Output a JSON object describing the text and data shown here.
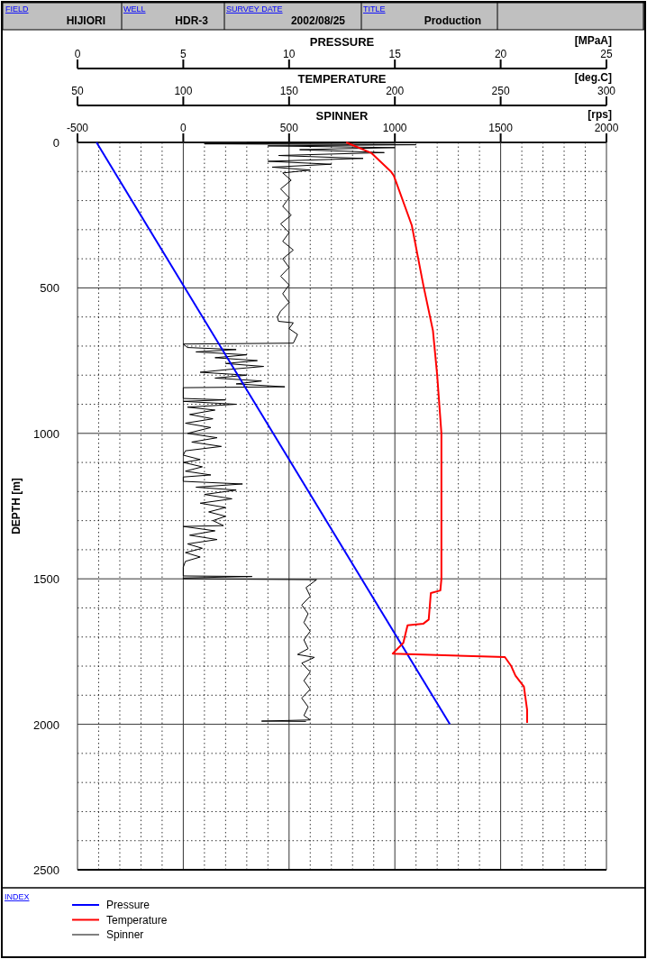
{
  "chart_data": [
    {
      "type": "line",
      "annotations": [
        "FIELD",
        "HIJIORI",
        "WELL",
        "HDR-3",
        "SURVEY DATE",
        "2002/08/25",
        "TITLE",
        "Production",
        "[MPaA]"
      ],
      "xlabel": "PRESSURE",
      "xlim": [
        0,
        25
      ],
      "xticks": [
        0,
        5,
        10,
        15,
        20,
        25
      ],
      "ylim": [
        2500,
        0
      ],
      "tick_labels": "x",
      "legend": "bottom",
      "series": [
        {
          "name": "Pressure",
          "color": "#0000ff",
          "x": [
            0.9,
            17.6
          ],
          "values": [
            0,
            2000
          ]
        }
      ]
    },
    {
      "type": "line",
      "annotations": [
        "[deg.C]"
      ],
      "xlabel": "TEMPERATURE",
      "xlim": [
        50,
        300
      ],
      "xticks": [
        50,
        100,
        150,
        200,
        250,
        300
      ],
      "ylim": [
        2500,
        0
      ],
      "tick_labels": "x",
      "legend": "bottom",
      "series": [
        {
          "name": "Temperature",
          "color": "#ff0000",
          "x": [
            177,
            189,
            198,
            199.5,
            208,
            213.5,
            218,
            220,
            222,
            222,
            221.5,
            217,
            216,
            213.5,
            206,
            204,
            199,
            252,
            255,
            257,
            261,
            262.5,
            262.5
          ],
          "values": [
            0,
            37,
            99,
            114,
            285,
            492,
            647,
            800,
            1000,
            1500,
            1540,
            1549,
            1640,
            1654,
            1660,
            1720,
            1757,
            1769,
            1800,
            1833,
            1871,
            1950,
            1995
          ]
        }
      ]
    },
    {
      "type": "line",
      "annotations": [
        "[rps]"
      ],
      "xlabel": "SPINNER",
      "xlim": [
        -500,
        2000
      ],
      "xticks": [
        -500,
        0,
        500,
        1000,
        1500,
        2000
      ],
      "ylabel": "DEPTH [m]",
      "ylim": [
        2500,
        0
      ],
      "yticks": [
        0,
        500,
        1000,
        1500,
        2000,
        2500
      ],
      "grid": true,
      "legend": "bottom",
      "legend_title": "INDEX",
      "series": [
        {
          "name": "Spinner",
          "color": "#000000",
          "x": [
            300,
            1000,
            100,
            1100,
            400,
            1000,
            550,
            950,
            450,
            850,
            400,
            700,
            420,
            600,
            470,
            510,
            460,
            500,
            470,
            510,
            460,
            500,
            470,
            520,
            470,
            500,
            460,
            500,
            470,
            500,
            460,
            445,
            450,
            520,
            500,
            540,
            520,
            0,
            20,
            250,
            60,
            300,
            150,
            350,
            200,
            380,
            220,
            80,
            300,
            150,
            370,
            250,
            480,
            0,
            0,
            200,
            0,
            250,
            20,
            150,
            30,
            140,
            10,
            130,
            20,
            160,
            40,
            180,
            10,
            0,
            80,
            0,
            90,
            10,
            130,
            0,
            0,
            280,
            60,
            250,
            100,
            230,
            80,
            200,
            120,
            200,
            140,
            190,
            0,
            150,
            30,
            160,
            20,
            90,
            10,
            80,
            10,
            0,
            0,
            325,
            0,
            0,
            630,
            580,
            600,
            560,
            590,
            570,
            600,
            570,
            590,
            540,
            620,
            560,
            600,
            570,
            600,
            560,
            590,
            570,
            600,
            370,
            580
          ],
          "values": [
            0,
            2,
            5,
            8,
            12,
            18,
            25,
            35,
            45,
            55,
            65,
            75,
            85,
            95,
            105,
            130,
            160,
            190,
            220,
            250,
            280,
            310,
            340,
            370,
            400,
            430,
            460,
            490,
            520,
            550,
            580,
            600,
            615,
            620,
            640,
            660,
            690,
            693,
            705,
            712,
            720,
            730,
            740,
            750,
            760,
            770,
            780,
            790,
            800,
            810,
            820,
            830,
            840,
            843,
            880,
            885,
            890,
            900,
            910,
            920,
            935,
            950,
            965,
            980,
            1000,
            1015,
            1030,
            1045,
            1060,
            1075,
            1090,
            1100,
            1115,
            1130,
            1143,
            1150,
            1165,
            1174,
            1185,
            1195,
            1210,
            1225,
            1240,
            1255,
            1270,
            1285,
            1300,
            1317,
            1320,
            1335,
            1350,
            1365,
            1380,
            1395,
            1410,
            1425,
            1440,
            1460,
            1490,
            1492,
            1497,
            1500,
            1503,
            1530,
            1560,
            1590,
            1620,
            1650,
            1680,
            1710,
            1740,
            1760,
            1770,
            1790,
            1820,
            1850,
            1880,
            1910,
            1940,
            1970,
            1985,
            1989,
            1990
          ]
        }
      ]
    }
  ]
}
